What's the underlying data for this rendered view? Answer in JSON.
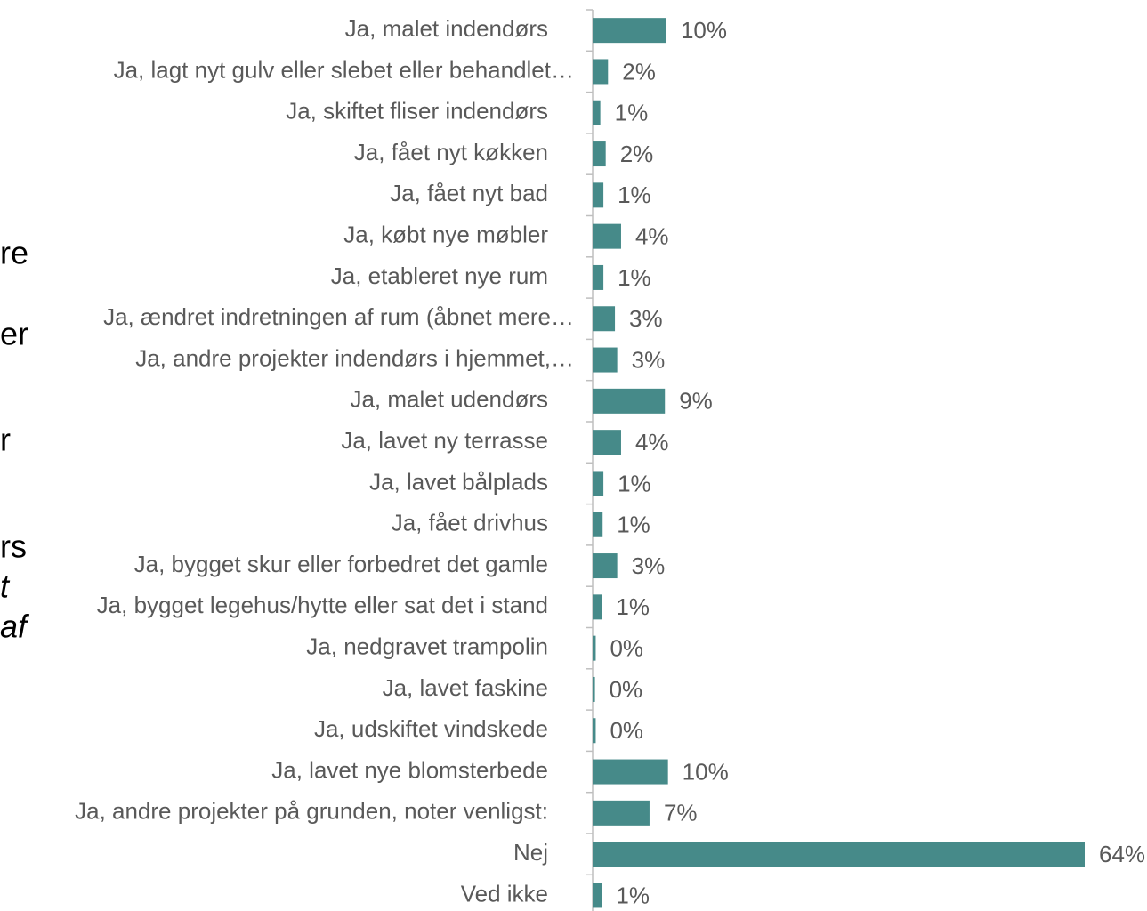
{
  "background_text": [
    "re",
    "er",
    "r",
    "rs",
    "t",
    "af"
  ],
  "chart_data": {
    "type": "barh",
    "categories": [
      "Ja, malet indendørs",
      "Ja, lagt nyt gulv eller slebet eller behandlet…",
      "Ja, skiftet fliser indendørs",
      "Ja, fået nyt køkken",
      "Ja, fået nyt bad",
      "Ja, købt nye møbler",
      "Ja, etableret nye rum",
      "Ja, ændret indretningen af rum (åbnet mere…",
      "Ja, andre projekter indendørs i hjemmet,…",
      "Ja, malet udendørs",
      "Ja, lavet ny terrasse",
      "Ja, lavet bålplads",
      "Ja, fået drivhus",
      "Ja, bygget skur eller forbedret det gamle",
      "Ja, bygget legehus/hytte eller sat det i stand",
      "Ja, nedgravet trampolin",
      "Ja, lavet faskine",
      "Ja, udskiftet vindskede",
      "Ja, lavet nye blomsterbede",
      "Ja, andre projekter på grunden, noter venligst:",
      "Nej",
      "Ved ikke"
    ],
    "values": [
      9.6,
      2.0,
      1.0,
      1.7,
      1.4,
      3.7,
      1.4,
      2.9,
      3.2,
      9.4,
      3.7,
      1.4,
      1.3,
      3.2,
      1.2,
      0.4,
      0.3,
      0.4,
      9.8,
      7.4,
      64.0,
      1.2
    ],
    "value_labels": [
      "10%",
      "2%",
      "1%",
      "2%",
      "1%",
      "4%",
      "1%",
      "3%",
      "3%",
      "9%",
      "4%",
      "1%",
      "1%",
      "3%",
      "1%",
      "0%",
      "0%",
      "0%",
      "10%",
      "7%",
      "64%",
      "1%"
    ],
    "color": "#468a89"
  }
}
